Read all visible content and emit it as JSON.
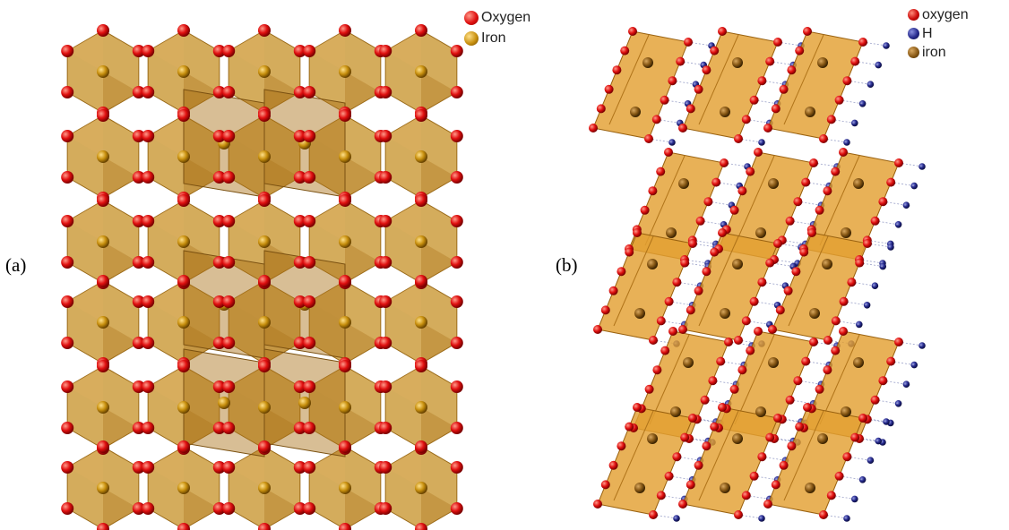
{
  "panels": [
    {
      "label": "(a)",
      "legend": [
        {
          "text": "Oxygen",
          "color": "#e01010"
        },
        {
          "text": "Iron",
          "color": "#c8900e"
        }
      ]
    },
    {
      "label": "(b)",
      "legend": [
        {
          "text": "oxygen",
          "color": "#cc0a0a"
        },
        {
          "text": "H",
          "color": "#262a8c"
        },
        {
          "text": "iron",
          "color": "#8a5a16"
        }
      ]
    }
  ],
  "colors": {
    "polyhedron_fill": "#c8952e",
    "polyhedron_face": "#b07a1c",
    "oxygen": "#e01010",
    "iron": "#c8900e",
    "hydrogen": "#262a8c"
  }
}
